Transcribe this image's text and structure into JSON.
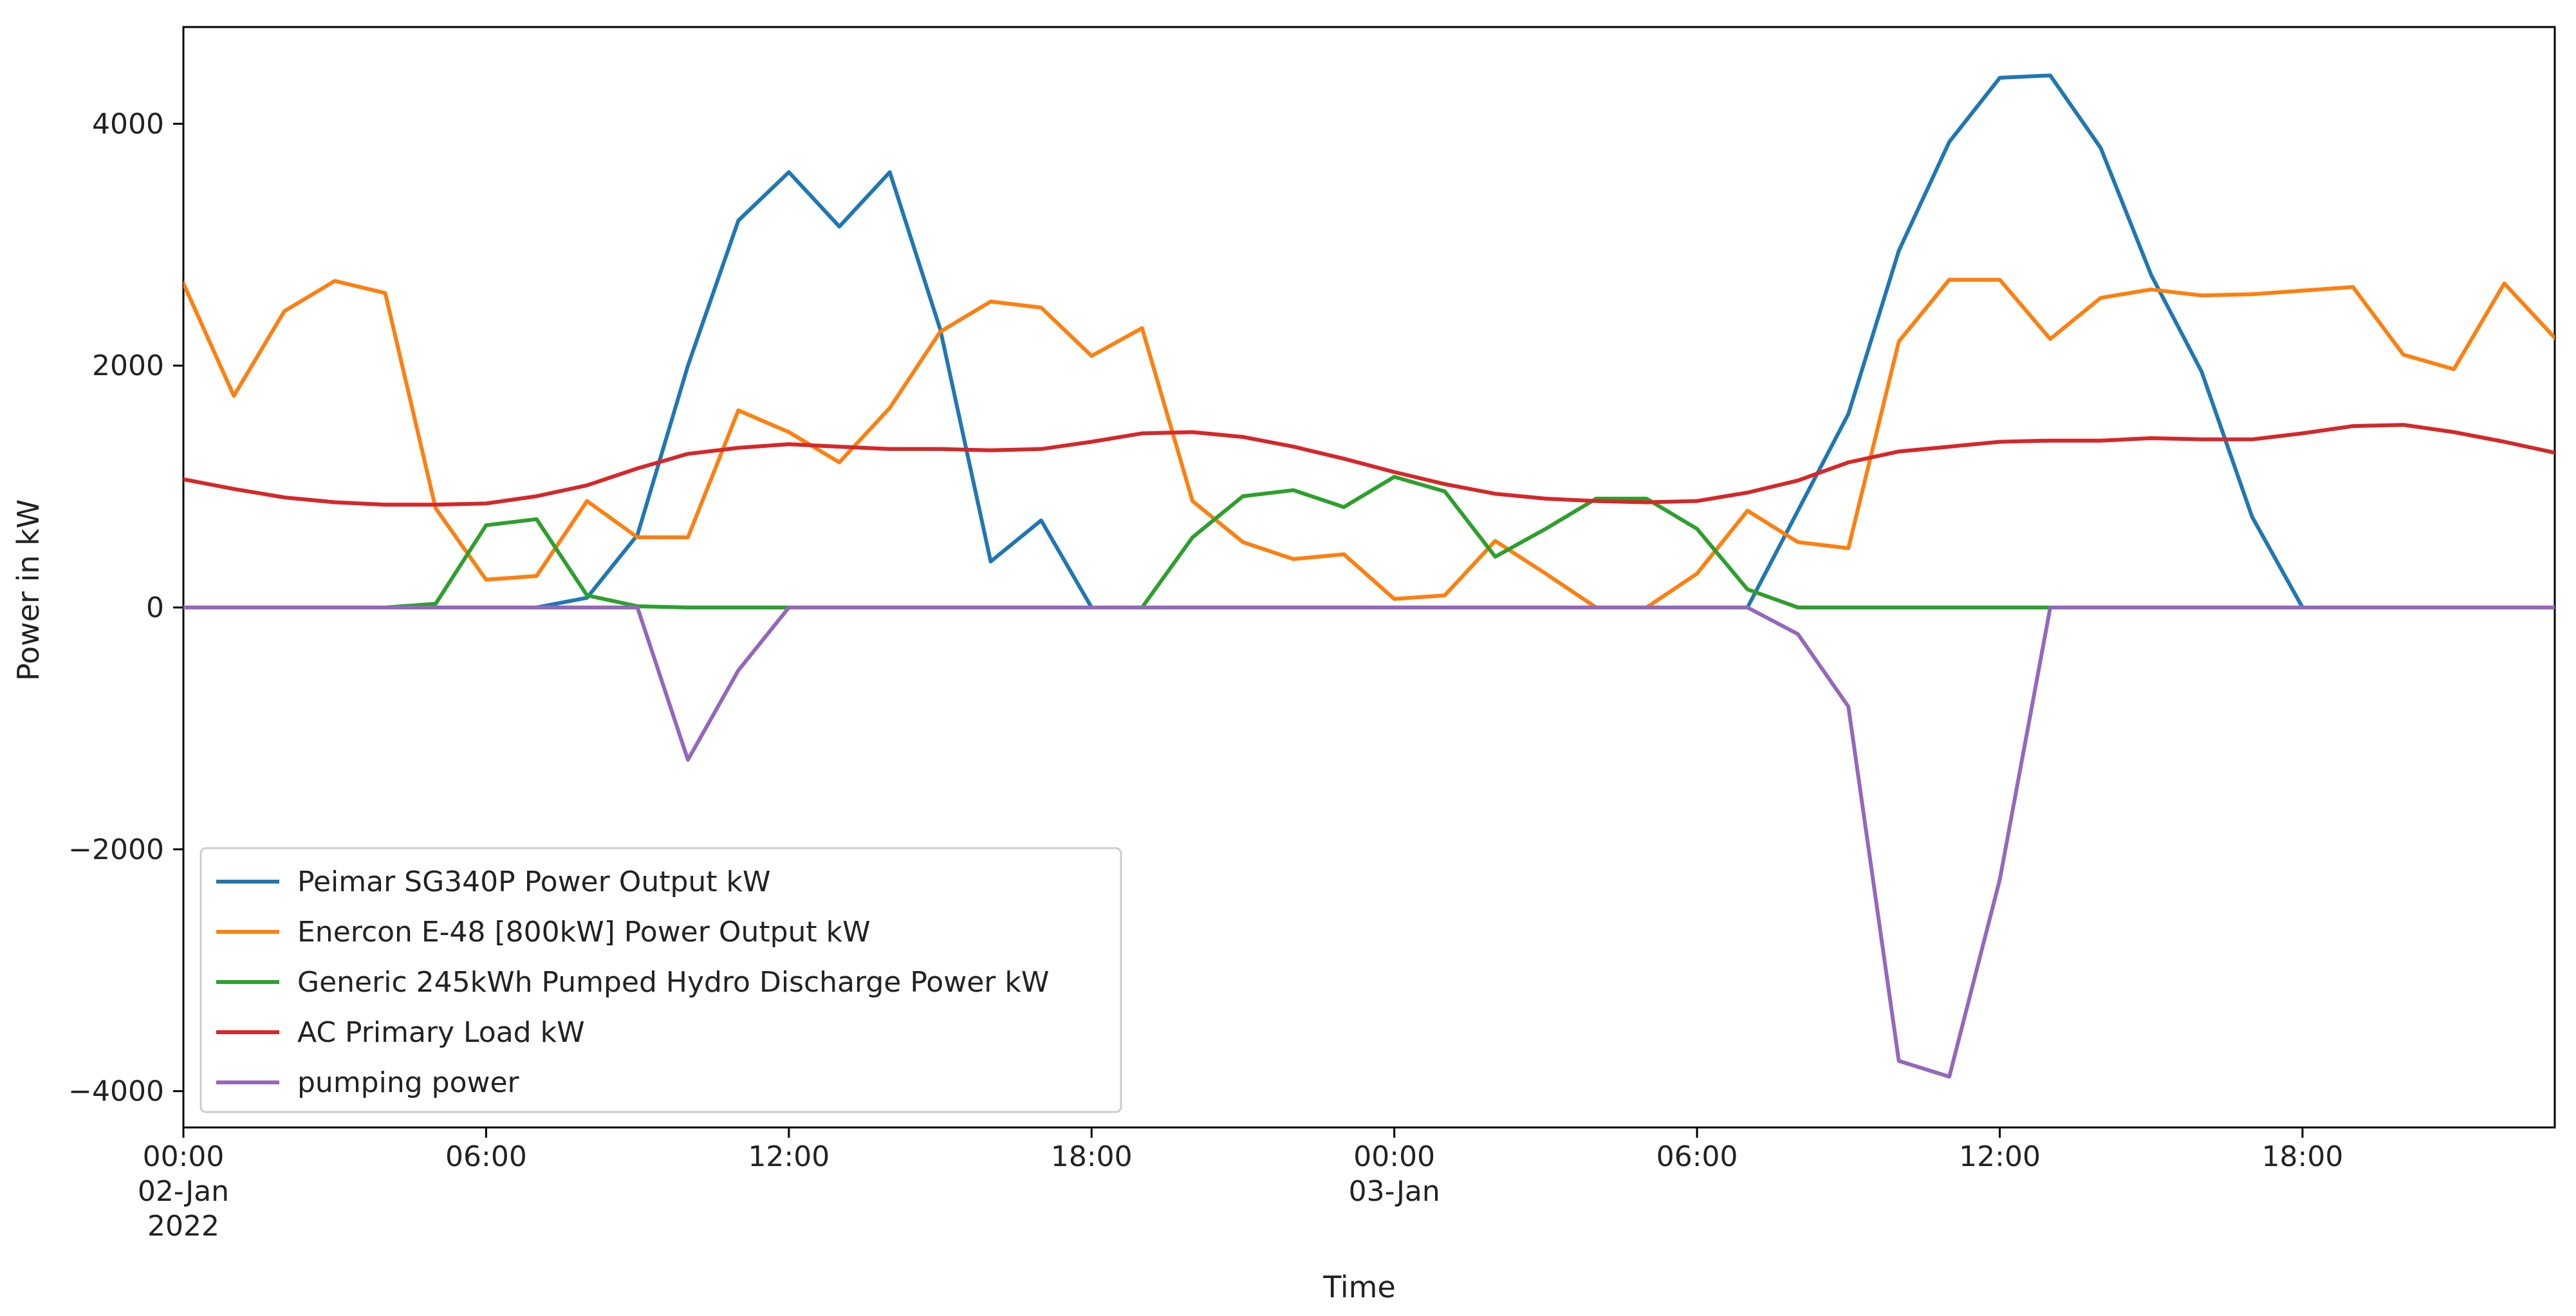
{
  "chart_data": {
    "type": "line",
    "title": "",
    "xlabel": "Time",
    "ylabel": "Power in kW",
    "xlim": [
      "2022-01-02 00:00",
      "2022-01-03 23:00"
    ],
    "ylim": [
      -4300,
      4800
    ],
    "grid": false,
    "legend_position": "lower-left",
    "x_ticks": [
      {
        "value": "2022-01-02 00:00",
        "lines": [
          "00:00",
          "02-Jan",
          "2022"
        ]
      },
      {
        "value": "2022-01-02 06:00",
        "lines": [
          "06:00"
        ]
      },
      {
        "value": "2022-01-02 12:00",
        "lines": [
          "12:00"
        ]
      },
      {
        "value": "2022-01-02 18:00",
        "lines": [
          "18:00"
        ]
      },
      {
        "value": "2022-01-03 00:00",
        "lines": [
          "00:00",
          "03-Jan"
        ]
      },
      {
        "value": "2022-01-03 06:00",
        "lines": [
          "06:00"
        ]
      },
      {
        "value": "2022-01-03 12:00",
        "lines": [
          "12:00"
        ]
      },
      {
        "value": "2022-01-03 18:00",
        "lines": [
          "18:00"
        ]
      }
    ],
    "y_ticks": [
      -4000,
      -2000,
      0,
      2000,
      4000
    ],
    "x": [
      "2022-01-02 00:00",
      "2022-01-02 01:00",
      "2022-01-02 02:00",
      "2022-01-02 03:00",
      "2022-01-02 04:00",
      "2022-01-02 05:00",
      "2022-01-02 06:00",
      "2022-01-02 07:00",
      "2022-01-02 08:00",
      "2022-01-02 09:00",
      "2022-01-02 10:00",
      "2022-01-02 11:00",
      "2022-01-02 12:00",
      "2022-01-02 13:00",
      "2022-01-02 14:00",
      "2022-01-02 15:00",
      "2022-01-02 16:00",
      "2022-01-02 17:00",
      "2022-01-02 18:00",
      "2022-01-02 19:00",
      "2022-01-02 20:00",
      "2022-01-02 21:00",
      "2022-01-02 22:00",
      "2022-01-02 23:00",
      "2022-01-03 00:00",
      "2022-01-03 01:00",
      "2022-01-03 02:00",
      "2022-01-03 03:00",
      "2022-01-03 04:00",
      "2022-01-03 05:00",
      "2022-01-03 06:00",
      "2022-01-03 07:00",
      "2022-01-03 08:00",
      "2022-01-03 09:00",
      "2022-01-03 10:00",
      "2022-01-03 11:00",
      "2022-01-03 12:00",
      "2022-01-03 13:00",
      "2022-01-03 14:00",
      "2022-01-03 15:00",
      "2022-01-03 16:00",
      "2022-01-03 17:00",
      "2022-01-03 18:00",
      "2022-01-03 19:00",
      "2022-01-03 20:00",
      "2022-01-03 21:00",
      "2022-01-03 22:00",
      "2022-01-03 23:00"
    ],
    "series": [
      {
        "name": "Peimar SG340P Power Output kW",
        "color": "#1f77b4",
        "values": [
          0,
          0,
          0,
          0,
          0,
          0,
          0,
          0,
          80,
          600,
          2000,
          3200,
          3600,
          3150,
          3600,
          2300,
          380,
          720,
          0,
          0,
          0,
          0,
          0,
          0,
          0,
          0,
          0,
          0,
          0,
          0,
          0,
          0,
          800,
          1600,
          2950,
          3850,
          4380,
          4400,
          3800,
          2750,
          1950,
          750,
          0,
          0,
          0,
          0,
          0,
          0
        ]
      },
      {
        "name": "Enercon E-48 [800kW] Power Output kW",
        "color": "#ff7f0e",
        "values": [
          2680,
          1750,
          2450,
          2700,
          2600,
          820,
          230,
          260,
          880,
          580,
          580,
          1630,
          1450,
          1200,
          1650,
          2280,
          2530,
          2480,
          2080,
          2310,
          880,
          540,
          400,
          440,
          70,
          100,
          550,
          280,
          0,
          0,
          280,
          800,
          540,
          490,
          2200,
          2710,
          2710,
          2220,
          2560,
          2630,
          2580,
          2590,
          2620,
          2650,
          2090,
          1970,
          2680,
          2230
        ]
      },
      {
        "name": "Generic 245kWh Pumped Hydro Discharge Power kW",
        "color": "#2ca02c",
        "values": [
          0,
          0,
          0,
          0,
          0,
          30,
          680,
          730,
          100,
          10,
          0,
          0,
          0,
          0,
          0,
          0,
          0,
          0,
          0,
          0,
          580,
          920,
          970,
          830,
          1080,
          960,
          420,
          650,
          900,
          900,
          650,
          150,
          0,
          0,
          0,
          0,
          0,
          0,
          0,
          0,
          0,
          0,
          0,
          0,
          0,
          0,
          0,
          0
        ]
      },
      {
        "name": "AC Primary Load kW",
        "color": "#d62728",
        "values": [
          1060,
          980,
          910,
          870,
          850,
          850,
          860,
          920,
          1010,
          1150,
          1270,
          1320,
          1350,
          1330,
          1310,
          1310,
          1300,
          1310,
          1370,
          1440,
          1450,
          1410,
          1330,
          1230,
          1120,
          1020,
          940,
          900,
          880,
          870,
          880,
          950,
          1050,
          1200,
          1290,
          1330,
          1370,
          1380,
          1380,
          1400,
          1390,
          1390,
          1440,
          1500,
          1510,
          1450,
          1370,
          1280
        ]
      },
      {
        "name": "pumping power",
        "color": "#9467bd",
        "values": [
          0,
          0,
          0,
          0,
          0,
          0,
          0,
          0,
          0,
          0,
          -1260,
          -520,
          0,
          0,
          0,
          0,
          0,
          0,
          0,
          0,
          0,
          0,
          0,
          0,
          0,
          0,
          0,
          0,
          0,
          0,
          0,
          0,
          -220,
          -820,
          -3750,
          -3880,
          -2250,
          0,
          0,
          0,
          0,
          0,
          0,
          0,
          0,
          0,
          0,
          0
        ]
      }
    ]
  }
}
